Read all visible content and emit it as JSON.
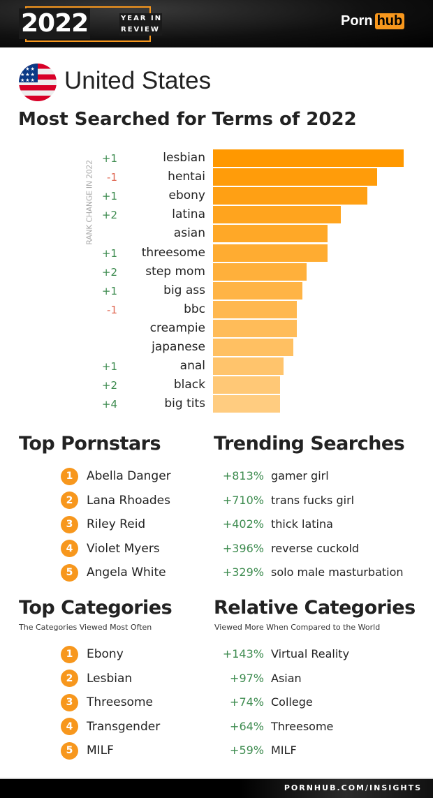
{
  "header": {
    "year": "2022",
    "year_in": "YEAR IN",
    "review": "REVIEW",
    "logo_porn": "Porn",
    "logo_hub": "hub"
  },
  "country": "United States",
  "colors": {
    "accent": "#f7971d",
    "bar_start": "#ff9800",
    "bar_end": "#ffcc80",
    "positive": "#3d8b4f",
    "negative": "#e06a55"
  },
  "chart_data": {
    "type": "bar",
    "orientation": "horizontal",
    "title": "Most Searched for Terms of 2022",
    "rank_change_label": "RANK CHANGE IN 2022",
    "categories": [
      "lesbian",
      "hentai",
      "ebony",
      "latina",
      "asian",
      "threesome",
      "step mom",
      "big ass",
      "bbc",
      "creampie",
      "japanese",
      "anal",
      "black",
      "big tits"
    ],
    "rank_change": [
      "+1",
      "-1",
      "+1",
      "+2",
      "",
      "+1",
      "+2",
      "+1",
      "-1",
      "",
      "",
      "+1",
      "+2",
      "+4"
    ],
    "values": [
      100,
      86,
      81,
      67,
      60,
      60,
      49,
      47,
      44,
      44,
      42,
      37,
      35,
      35
    ],
    "value_note_relative_scale": true
  },
  "pornstars": {
    "title": "Top Pornstars",
    "items": [
      "Abella Danger",
      "Lana Rhoades",
      "Riley Reid",
      "Violet Myers",
      "Angela White"
    ]
  },
  "trending": {
    "title": "Trending Searches",
    "items": [
      {
        "pct": "+813%",
        "term": "gamer girl"
      },
      {
        "pct": "+710%",
        "term": "trans fucks girl"
      },
      {
        "pct": "+402%",
        "term": "thick latina"
      },
      {
        "pct": "+396%",
        "term": "reverse cuckold"
      },
      {
        "pct": "+329%",
        "term": "solo male masturbation"
      }
    ]
  },
  "categories": {
    "title": "Top Categories",
    "subtitle": "The Categories Viewed Most Often",
    "items": [
      "Ebony",
      "Lesbian",
      "Threesome",
      "Transgender",
      "MILF"
    ]
  },
  "relative": {
    "title": "Relative Categories",
    "subtitle": "Viewed More When Compared to the World",
    "items": [
      {
        "pct": "+143%",
        "term": "Virtual Reality"
      },
      {
        "pct": "+97%",
        "term": "Asian"
      },
      {
        "pct": "+74%",
        "term": "College"
      },
      {
        "pct": "+64%",
        "term": "Threesome"
      },
      {
        "pct": "+59%",
        "term": "MILF"
      }
    ]
  },
  "footer": "PORNHUB.COM/INSIGHTS"
}
